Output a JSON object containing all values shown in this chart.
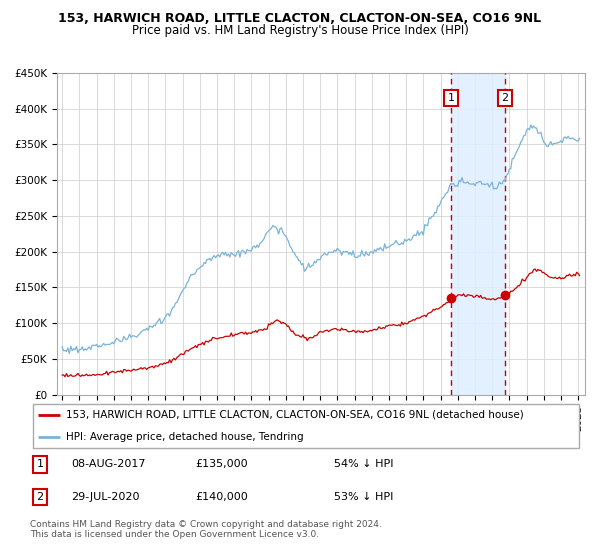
{
  "title": "153, HARWICH ROAD, LITTLE CLACTON, CLACTON-ON-SEA, CO16 9NL",
  "subtitle": "Price paid vs. HM Land Registry's House Price Index (HPI)",
  "hpi_color": "#7ab3d8",
  "price_color": "#cc0000",
  "background_color": "#ffffff",
  "plot_bg_color": "#ffffff",
  "grid_color": "#cccccc",
  "ylim": [
    0,
    450000
  ],
  "yticks": [
    0,
    50000,
    100000,
    150000,
    200000,
    250000,
    300000,
    350000,
    400000,
    450000
  ],
  "ytick_labels": [
    "£0",
    "£50K",
    "£100K",
    "£150K",
    "£200K",
    "£250K",
    "£300K",
    "£350K",
    "£400K",
    "£450K"
  ],
  "transaction1_date_num": 2017.6,
  "transaction2_date_num": 2020.75,
  "transaction1_price": 135000,
  "transaction2_price": 140000,
  "shade_color": "#ddeeff",
  "vline_color": "#cc0000",
  "legend_label_price": "153, HARWICH ROAD, LITTLE CLACTON, CLACTON-ON-SEA, CO16 9NL (detached house)",
  "legend_label_hpi": "HPI: Average price, detached house, Tendring",
  "table_rows": [
    {
      "num": "1",
      "date": "08-AUG-2017",
      "price": "£135,000",
      "pct": "54% ↓ HPI"
    },
    {
      "num": "2",
      "date": "29-JUL-2020",
      "price": "£140,000",
      "pct": "53% ↓ HPI"
    }
  ],
  "footnote": "Contains HM Land Registry data © Crown copyright and database right 2024.\nThis data is licensed under the Open Government Licence v3.0.",
  "title_fontsize": 9,
  "subtitle_fontsize": 8.5,
  "tick_fontsize": 7.5,
  "legend_fontsize": 8
}
